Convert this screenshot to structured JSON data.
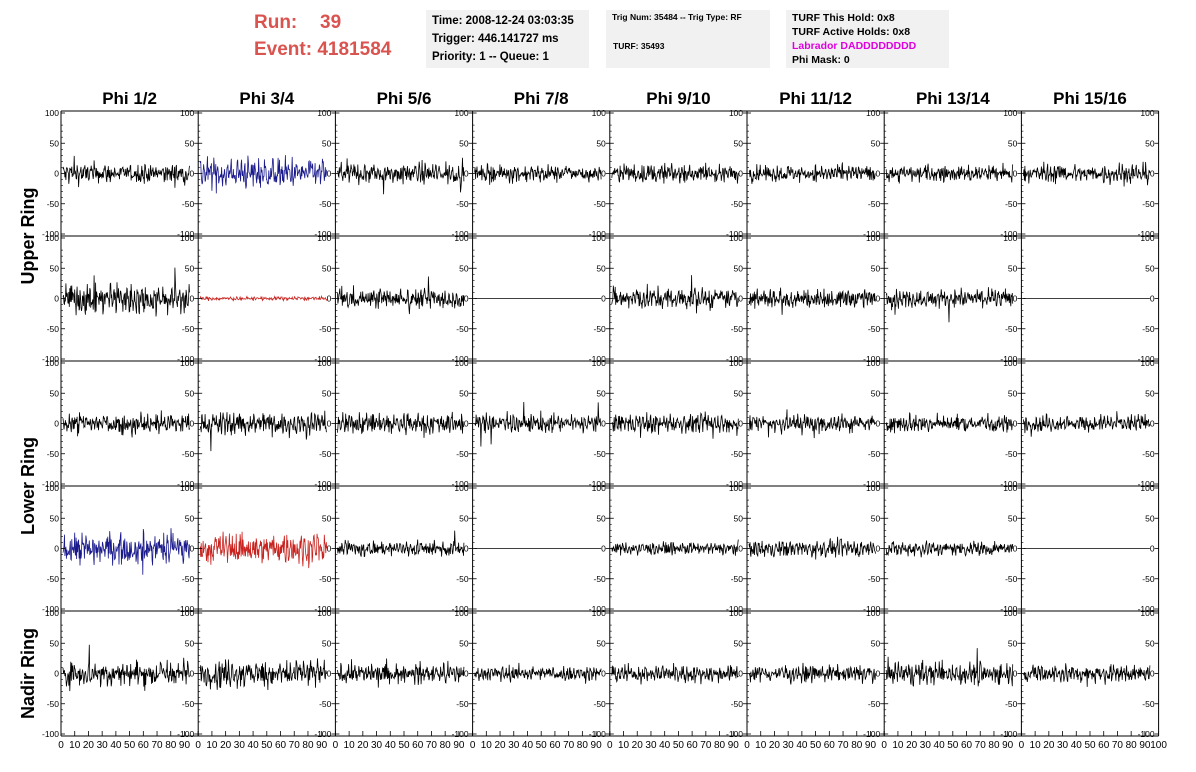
{
  "header": {
    "run_label": "Run:",
    "run_value": "39",
    "event_label": "Event:",
    "event_value": "4181584"
  },
  "panels": {
    "time_line": "Time: 2008-12-24 03:03:35",
    "trigger_line": "Trigger: 446.141727 ms",
    "priority_line": "Priority: 1 -- Queue: 1",
    "trig_line": "Trig Num: 35484 -- Trig Type: RF",
    "turf_line": "TURF: 35493",
    "turf_hold_line": "TURF This Hold: 0x8",
    "turf_active_line": "TURF Active Holds: 0x8",
    "labrador_line": "Labrador DADDDDDDDD",
    "phi_mask_line": "Phi Mask: 0"
  },
  "chart_data": {
    "type": "line",
    "columns": [
      "Phi 1/2",
      "Phi 3/4",
      "Phi 5/6",
      "Phi 7/8",
      "Phi 9/10",
      "Phi 11/12",
      "Phi 13/14",
      "Phi 15/16"
    ],
    "ring_labels": [
      "Upper Ring",
      "Lower Ring",
      "Nadir Ring"
    ],
    "ylim": [
      -100,
      100
    ],
    "yticks": [
      -100,
      -50,
      0,
      50,
      100
    ],
    "xlim": [
      0,
      100
    ],
    "xticks": [
      0,
      10,
      20,
      30,
      40,
      50,
      60,
      70,
      80,
      90,
      100
    ],
    "colors": {
      "black": "#000000",
      "blue": "#1a1a8c",
      "red": "#c8231e"
    },
    "traces": [
      [
        {
          "color": "black",
          "amp": 14
        },
        {
          "color": "blue",
          "amp": 20
        },
        {
          "color": "black",
          "amp": 14
        },
        {
          "color": "black",
          "amp": 11
        },
        {
          "color": "black",
          "amp": 12
        },
        {
          "color": "black",
          "amp": 11
        },
        {
          "color": "black",
          "amp": 12
        },
        {
          "color": "black",
          "amp": 13
        }
      ],
      [
        {
          "color": "black",
          "amp": 22
        },
        {
          "color": "red",
          "amp": 2.5
        },
        {
          "color": "black",
          "amp": 14
        },
        {
          "color": "black",
          "amp": 0
        },
        {
          "color": "black",
          "amp": 15
        },
        {
          "color": "black",
          "amp": 13
        },
        {
          "color": "black",
          "amp": 12
        },
        {
          "color": "black",
          "amp": 0
        }
      ],
      [
        {
          "color": "black",
          "amp": 15
        },
        {
          "color": "black",
          "amp": 16
        },
        {
          "color": "black",
          "amp": 15
        },
        {
          "color": "black",
          "amp": 12
        },
        {
          "color": "black",
          "amp": 13
        },
        {
          "color": "black",
          "amp": 13
        },
        {
          "color": "black",
          "amp": 12
        },
        {
          "color": "black",
          "amp": 11
        }
      ],
      [
        {
          "color": "blue",
          "amp": 22
        },
        {
          "color": "red",
          "amp": 20
        },
        {
          "color": "black",
          "amp": 11
        },
        {
          "color": "black",
          "amp": 0
        },
        {
          "color": "black",
          "amp": 8
        },
        {
          "color": "black",
          "amp": 11
        },
        {
          "color": "black",
          "amp": 10
        },
        {
          "color": "black",
          "amp": 0
        }
      ],
      [
        {
          "color": "black",
          "amp": 18
        },
        {
          "color": "black",
          "amp": 18
        },
        {
          "color": "black",
          "amp": 13
        },
        {
          "color": "black",
          "amp": 10
        },
        {
          "color": "black",
          "amp": 12
        },
        {
          "color": "black",
          "amp": 11
        },
        {
          "color": "black",
          "amp": 15
        },
        {
          "color": "black",
          "amp": 12
        }
      ]
    ]
  }
}
